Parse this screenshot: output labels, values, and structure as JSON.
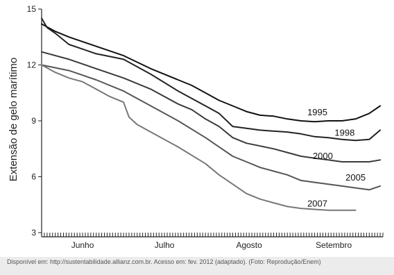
{
  "chart_data": {
    "type": "line",
    "title": "",
    "xlabel": "",
    "ylabel": "Extensão de gelo marítimo",
    "ylim": [
      3,
      15
    ],
    "yticks": [
      3,
      6,
      9,
      12,
      15
    ],
    "xlim": [
      0,
      125
    ],
    "x_categories": [
      {
        "label": "Junho",
        "x": 15
      },
      {
        "label": "Julho",
        "x": 45
      },
      {
        "label": "Agosto",
        "x": 76
      },
      {
        "label": "Setembro",
        "x": 107
      }
    ],
    "grid": false,
    "series": [
      {
        "name": "1995",
        "color": "#111111",
        "x": [
          0,
          5,
          10,
          20,
          30,
          40,
          50,
          55,
          60,
          65,
          70,
          75,
          80,
          85,
          90,
          95,
          100,
          105,
          110,
          115,
          120,
          124
        ],
        "y": [
          14.2,
          13.8,
          13.5,
          13.0,
          12.5,
          11.8,
          11.2,
          10.9,
          10.5,
          10.1,
          9.8,
          9.5,
          9.3,
          9.25,
          9.1,
          9.0,
          8.95,
          9.0,
          9.0,
          9.1,
          9.4,
          9.8
        ]
      },
      {
        "name": "1998",
        "color": "#222222",
        "x": [
          0,
          2,
          5,
          10,
          20,
          30,
          40,
          50,
          60,
          65,
          70,
          75,
          80,
          90,
          95,
          100,
          105,
          110,
          115,
          120,
          124
        ],
        "y": [
          14.5,
          14.0,
          13.7,
          13.1,
          12.6,
          12.3,
          11.5,
          10.6,
          9.8,
          9.4,
          8.7,
          8.6,
          8.5,
          8.4,
          8.3,
          8.15,
          8.1,
          8.0,
          7.95,
          8.0,
          8.5
        ]
      },
      {
        "name": "2000",
        "color": "#3a3a3a",
        "x": [
          0,
          10,
          20,
          30,
          40,
          50,
          55,
          60,
          65,
          70,
          75,
          80,
          85,
          90,
          95,
          100,
          105,
          110,
          115,
          120,
          124
        ],
        "y": [
          12.7,
          12.3,
          11.8,
          11.3,
          10.7,
          9.9,
          9.6,
          9.1,
          8.7,
          8.1,
          7.8,
          7.65,
          7.5,
          7.3,
          7.1,
          7.0,
          6.9,
          6.8,
          6.8,
          6.8,
          6.9
        ]
      },
      {
        "name": "2005",
        "color": "#555555",
        "x": [
          0,
          10,
          20,
          30,
          40,
          50,
          60,
          65,
          70,
          75,
          80,
          85,
          90,
          95,
          100,
          105,
          110,
          115,
          120,
          124
        ],
        "y": [
          12.0,
          11.7,
          11.2,
          10.6,
          9.8,
          9.0,
          8.1,
          7.6,
          7.1,
          6.8,
          6.5,
          6.3,
          6.1,
          5.8,
          5.7,
          5.6,
          5.5,
          5.4,
          5.3,
          5.5
        ]
      },
      {
        "name": "2007",
        "color": "#777777",
        "x": [
          0,
          5,
          10,
          15,
          20,
          25,
          30,
          32,
          35,
          40,
          50,
          60,
          65,
          70,
          75,
          80,
          85,
          90,
          95,
          100,
          105,
          110,
          115
        ],
        "y": [
          12.0,
          11.6,
          11.3,
          11.1,
          10.7,
          10.3,
          10.0,
          9.2,
          8.8,
          8.4,
          7.6,
          6.7,
          6.1,
          5.6,
          5.1,
          4.8,
          4.6,
          4.4,
          4.3,
          4.25,
          4.2,
          4.2,
          4.2
        ]
      }
    ],
    "annotations": [
      {
        "text": "1995",
        "series": "1995",
        "x": 101,
        "y": 9.45
      },
      {
        "text": "1998",
        "series": "1998",
        "x": 111,
        "y": 8.35
      },
      {
        "text": "2000",
        "series": "2000",
        "x": 103,
        "y": 7.1
      },
      {
        "text": "2005",
        "series": "2005",
        "x": 115,
        "y": 5.95
      },
      {
        "text": "2007",
        "series": "2007",
        "x": 101,
        "y": 4.55
      }
    ]
  },
  "source": {
    "text": "Disponível em: http://sustentabilidade.allianz.com.br. Acesso em: fev. 2012 (adaptado). (Foto: Reprodução/Enem)"
  }
}
